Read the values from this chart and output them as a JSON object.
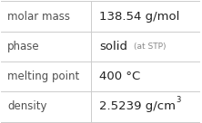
{
  "rows": [
    {
      "label": "molar mass",
      "value": "138.54 g/mol",
      "value_parts": null
    },
    {
      "label": "phase",
      "value": null,
      "value_parts": {
        "main": "solid",
        "sub": "(at STP)"
      }
    },
    {
      "label": "melting point",
      "value": "400 °C",
      "value_parts": null
    },
    {
      "label": "density",
      "value_parts": {
        "main": "2.5239 g/cm",
        "sup": "3"
      },
      "value": null
    }
  ],
  "bg_color": "#ffffff",
  "border_color": "#cccccc",
  "label_color": "#505050",
  "value_color": "#222222",
  "sub_color": "#888888",
  "label_fontsize": 8.5,
  "value_fontsize": 9.5,
  "small_fontsize": 6.5,
  "sup_fontsize": 6.0,
  "col_split": 0.455
}
